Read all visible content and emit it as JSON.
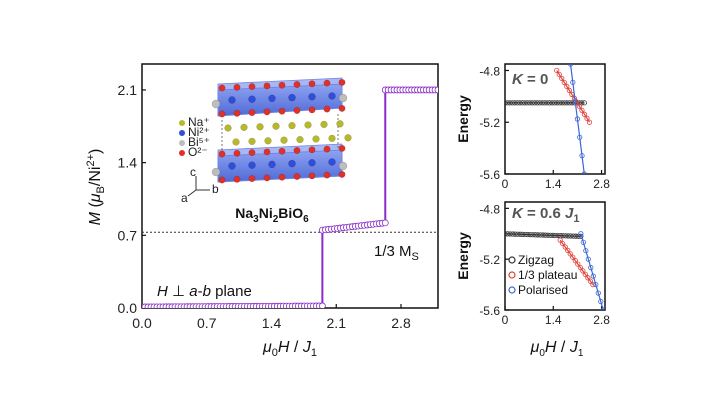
{
  "chart_data": [
    {
      "type": "line",
      "xlabel": "μ0H / J1",
      "ylabel": "M (μB/Ni2+)",
      "xlim": [
        0,
        3.2
      ],
      "ylim": [
        0,
        2.35
      ],
      "xticks": [
        "0.0",
        "0.7",
        "1.4",
        "2.1",
        "2.8"
      ],
      "yticks": [
        "0.0",
        "0.7",
        "1.4",
        "2.1"
      ],
      "x_tick_values": [
        0,
        0.7,
        1.4,
        2.1,
        2.8
      ],
      "y_tick_values": [
        0,
        0.7,
        1.4,
        2.1
      ],
      "series": [
        {
          "color": "#8a2bc8",
          "x": [
            0,
            1.95,
            1.95,
            2.63,
            2.63,
            3.2
          ],
          "y": [
            0.01,
            0.02,
            0.75,
            0.82,
            2.1,
            2.1
          ]
        }
      ],
      "reference_line": {
        "y": 0.73,
        "label": "1/3 M",
        "label_sub": "S"
      },
      "annotation": "H ⊥ a-b plane",
      "inset": {
        "formula": "Na3Ni2BiO6",
        "legend": [
          "Na⁺",
          "Ni²⁺",
          "Bi⁵⁺",
          "O²⁻"
        ],
        "axes": [
          "c",
          "b",
          "a"
        ]
      }
    },
    {
      "type": "line",
      "title": "K = 0",
      "ylabel": "Energy",
      "xlim": [
        0,
        2.9
      ],
      "ylim": [
        -5.6,
        -4.75
      ],
      "xticks": [
        "0",
        "1.4",
        "2.8"
      ],
      "yticks": [
        "-4.8",
        "-5.2",
        "-5.6"
      ],
      "x_tick_values": [
        0,
        1.4,
        2.8
      ],
      "y_tick_values": [
        -4.8,
        -5.2,
        -5.6
      ],
      "series": [
        {
          "color": "#333333",
          "x": [
            0.0,
            2.3
          ],
          "y": [
            -5.05,
            -5.05
          ]
        },
        {
          "color": "#e0403a",
          "x": [
            1.5,
            2.45
          ],
          "y": [
            -4.8,
            -5.2
          ]
        },
        {
          "color": "#3a66d6",
          "x": [
            1.9,
            2.3
          ],
          "y": [
            -4.75,
            -5.6
          ]
        }
      ]
    },
    {
      "type": "line",
      "title": "K = 0.6 J1",
      "ylabel": "Energy",
      "xlabel": "μ0H / J1",
      "xlim": [
        0,
        2.9
      ],
      "ylim": [
        -5.6,
        -4.75
      ],
      "xticks": [
        "0",
        "1.4",
        "2.8"
      ],
      "yticks": [
        "-4.8",
        "-5.2",
        "-5.6"
      ],
      "x_tick_values": [
        0,
        1.4,
        2.8
      ],
      "y_tick_values": [
        -4.8,
        -5.2,
        -5.6
      ],
      "series": [
        {
          "name": "Zigzag",
          "color": "#333333",
          "x": [
            0.0,
            2.2
          ],
          "y": [
            -5.0,
            -5.02
          ]
        },
        {
          "name": "1/3 plateau",
          "color": "#e0403a",
          "x": [
            1.6,
            2.55
          ],
          "y": [
            -5.05,
            -5.4
          ]
        },
        {
          "name": "Polarised",
          "color": "#3a66d6",
          "x": [
            2.2,
            2.85
          ],
          "y": [
            -5.0,
            -5.6
          ]
        }
      ]
    }
  ]
}
